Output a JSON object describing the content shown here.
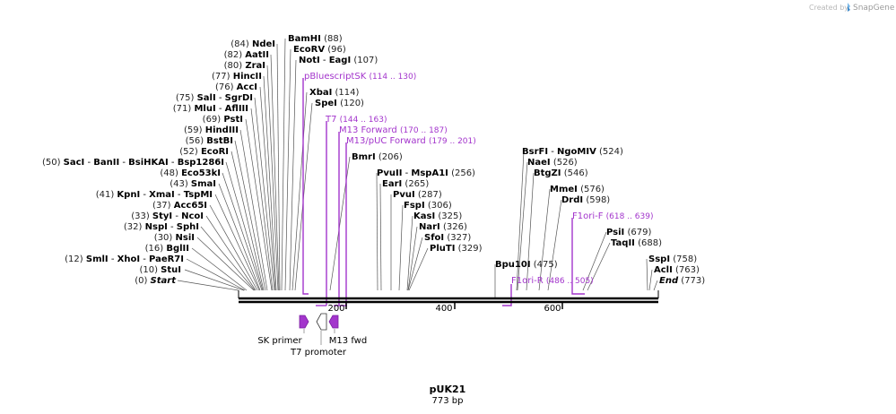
{
  "credit": {
    "prefix": "Created by",
    "brand": "SnapGene"
  },
  "plasmid": {
    "name": "pUK21",
    "length_label": "773 bp",
    "length": 773
  },
  "ruler": {
    "ticks": [
      200,
      400,
      600
    ]
  },
  "sites": [
    {
      "pos": "(0)",
      "names": [
        "Start"
      ],
      "italic": true
    },
    {
      "pos": "(10)",
      "names": [
        "StuI"
      ]
    },
    {
      "pos": "(12)",
      "names": [
        "SmlI",
        "XhoI",
        "PaeR7I"
      ]
    },
    {
      "pos": "(16)",
      "names": [
        "BglII"
      ]
    },
    {
      "pos": "(30)",
      "names": [
        "NsiI"
      ]
    },
    {
      "pos": "(32)",
      "names": [
        "NspI",
        "SphI"
      ]
    },
    {
      "pos": "(33)",
      "names": [
        "StyI",
        "NcoI"
      ]
    },
    {
      "pos": "(37)",
      "names": [
        "Acc65I"
      ]
    },
    {
      "pos": "(41)",
      "names": [
        "KpnI",
        "XmaI",
        "TspMI"
      ]
    },
    {
      "pos": "(43)",
      "names": [
        "SmaI"
      ]
    },
    {
      "pos": "(48)",
      "names": [
        "Eco53kI"
      ]
    },
    {
      "pos": "(50)",
      "names": [
        "SacI",
        "BanII",
        "BsiHKAI",
        "Bsp1286I"
      ]
    },
    {
      "pos": "(52)",
      "names": [
        "EcoRI"
      ]
    },
    {
      "pos": "(56)",
      "names": [
        "BstBI"
      ]
    },
    {
      "pos": "(59)",
      "names": [
        "HindIII"
      ]
    },
    {
      "pos": "(69)",
      "names": [
        "PstI"
      ]
    },
    {
      "pos": "(71)",
      "names": [
        "MluI",
        "AflIII"
      ]
    },
    {
      "pos": "(75)",
      "names": [
        "SalI",
        "SgrDI"
      ]
    },
    {
      "pos": "(76)",
      "names": [
        "AccI"
      ]
    },
    {
      "pos": "(77)",
      "names": [
        "HincII"
      ]
    },
    {
      "pos": "(80)",
      "names": [
        "ZraI"
      ]
    },
    {
      "pos": "(82)",
      "names": [
        "AatII"
      ]
    },
    {
      "pos": "(84)",
      "names": [
        "NdeI"
      ]
    },
    {
      "pos": "(88)",
      "names": [
        "BamHI"
      ]
    },
    {
      "pos": "(96)",
      "names": [
        "EcoRV"
      ]
    },
    {
      "pos": "(107)",
      "names": [
        "NotI",
        "EagI"
      ]
    },
    {
      "pos": "(114)",
      "names": [
        "XbaI"
      ]
    },
    {
      "pos": "(120)",
      "names": [
        "SpeI"
      ]
    },
    {
      "pos": "(206)",
      "names": [
        "BmrI"
      ]
    },
    {
      "pos": "(256)",
      "names": [
        "PvuII",
        "MspA1I"
      ]
    },
    {
      "pos": "(265)",
      "names": [
        "EarI"
      ]
    },
    {
      "pos": "(287)",
      "names": [
        "PvuI"
      ]
    },
    {
      "pos": "(306)",
      "names": [
        "FspI"
      ]
    },
    {
      "pos": "(325)",
      "names": [
        "KasI"
      ]
    },
    {
      "pos": "(326)",
      "names": [
        "NarI"
      ]
    },
    {
      "pos": "(327)",
      "names": [
        "SfoI"
      ]
    },
    {
      "pos": "(329)",
      "names": [
        "PluTI"
      ]
    },
    {
      "pos": "(475)",
      "names": [
        "Bpu10I"
      ]
    },
    {
      "pos": "(524)",
      "names": [
        "BsrFI",
        "NgoMIV"
      ]
    },
    {
      "pos": "(526)",
      "names": [
        "NaeI"
      ]
    },
    {
      "pos": "(546)",
      "names": [
        "BtgZI"
      ]
    },
    {
      "pos": "(576)",
      "names": [
        "MmeI"
      ]
    },
    {
      "pos": "(598)",
      "names": [
        "DrdI"
      ]
    },
    {
      "pos": "(679)",
      "names": [
        "PsiI"
      ]
    },
    {
      "pos": "(688)",
      "names": [
        "TaqII"
      ]
    },
    {
      "pos": "(758)",
      "names": [
        "SspI"
      ]
    },
    {
      "pos": "(763)",
      "names": [
        "AclI"
      ]
    },
    {
      "pos": "(773)",
      "names": [
        "End"
      ],
      "italic": true
    }
  ],
  "primers": [
    {
      "name": "pBluescriptSK",
      "range": "(114 .. 130)"
    },
    {
      "name": "T7",
      "range": "(144 .. 163)"
    },
    {
      "name": "M13 Forward",
      "range": "(170 .. 187)"
    },
    {
      "name": "M13/pUC Forward",
      "range": "(179 .. 201)"
    },
    {
      "name": "F1ori-F",
      "range": "(618 .. 639)"
    },
    {
      "name": "F1ori-R",
      "range": "(486 .. 505)"
    }
  ],
  "features": [
    {
      "name": "SK primer"
    },
    {
      "name": "T7 promoter"
    },
    {
      "name": "M13 fwd"
    }
  ],
  "colors": {
    "primer": "#a335cc",
    "feature": "#a335cc",
    "backbone": "#000000",
    "leader": "#555555"
  }
}
